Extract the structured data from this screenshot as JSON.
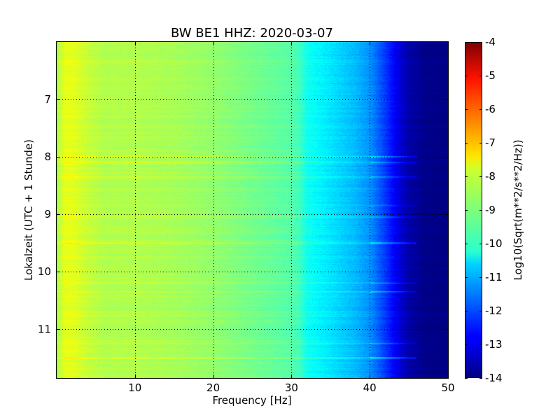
{
  "chart_data": {
    "type": "heatmap",
    "title": "BW BE1 HHZ: 2020-03-07",
    "xlabel": "Frequency [Hz]",
    "ylabel": "Lokalzeit (UTC + 1 Stunde)",
    "xlim": [
      0,
      50
    ],
    "ylim": [
      11.85,
      6.0
    ],
    "y_inverted": true,
    "x_ticks": [
      "10",
      "20",
      "30",
      "40",
      "50"
    ],
    "x_tick_values": [
      10,
      20,
      30,
      40,
      50
    ],
    "y_ticks": [
      "7",
      "8",
      "9",
      "10",
      "11"
    ],
    "y_tick_values": [
      7,
      8,
      9,
      10,
      11
    ],
    "grid": true,
    "colorbar": {
      "label": "Log10(Sqrt(m**2/s**2/Hz))",
      "range": [
        -14,
        -4
      ],
      "ticks": [
        "-4",
        "-5",
        "-6",
        "-7",
        "-8",
        "-9",
        "-10",
        "-11",
        "-12",
        "-13",
        "-14"
      ],
      "tick_values": [
        -4,
        -5,
        -6,
        -7,
        -8,
        -9,
        -10,
        -11,
        -12,
        -13,
        -14
      ],
      "colormap": "jet"
    },
    "spectrum_profile": {
      "frequency_hz": [
        0,
        1,
        2,
        4,
        6,
        10,
        15,
        20,
        25,
        30,
        31,
        32,
        35,
        38,
        40,
        42,
        44,
        45,
        47,
        50
      ],
      "log10_amplitude": [
        -8.6,
        -8.0,
        -8.0,
        -8.3,
        -8.5,
        -8.5,
        -8.6,
        -8.8,
        -9.1,
        -9.4,
        -9.6,
        -10.1,
        -10.5,
        -10.9,
        -11.3,
        -12.2,
        -13.2,
        -13.6,
        -13.9,
        -14.0
      ]
    },
    "horizontal_bands": [
      {
        "time": 8.0,
        "boost": 1.0
      },
      {
        "time": 8.1,
        "boost": 0.5
      },
      {
        "time": 8.35,
        "boost": 0.55
      },
      {
        "time": 8.85,
        "boost": 0.4
      },
      {
        "time": 9.05,
        "boost": 0.45
      },
      {
        "time": 9.5,
        "boost": 1.0
      },
      {
        "time": 10.2,
        "boost": 0.5
      },
      {
        "time": 10.35,
        "boost": 0.8
      },
      {
        "time": 11.25,
        "boost": 0.5
      },
      {
        "time": 11.5,
        "boost": 1.0
      }
    ]
  }
}
